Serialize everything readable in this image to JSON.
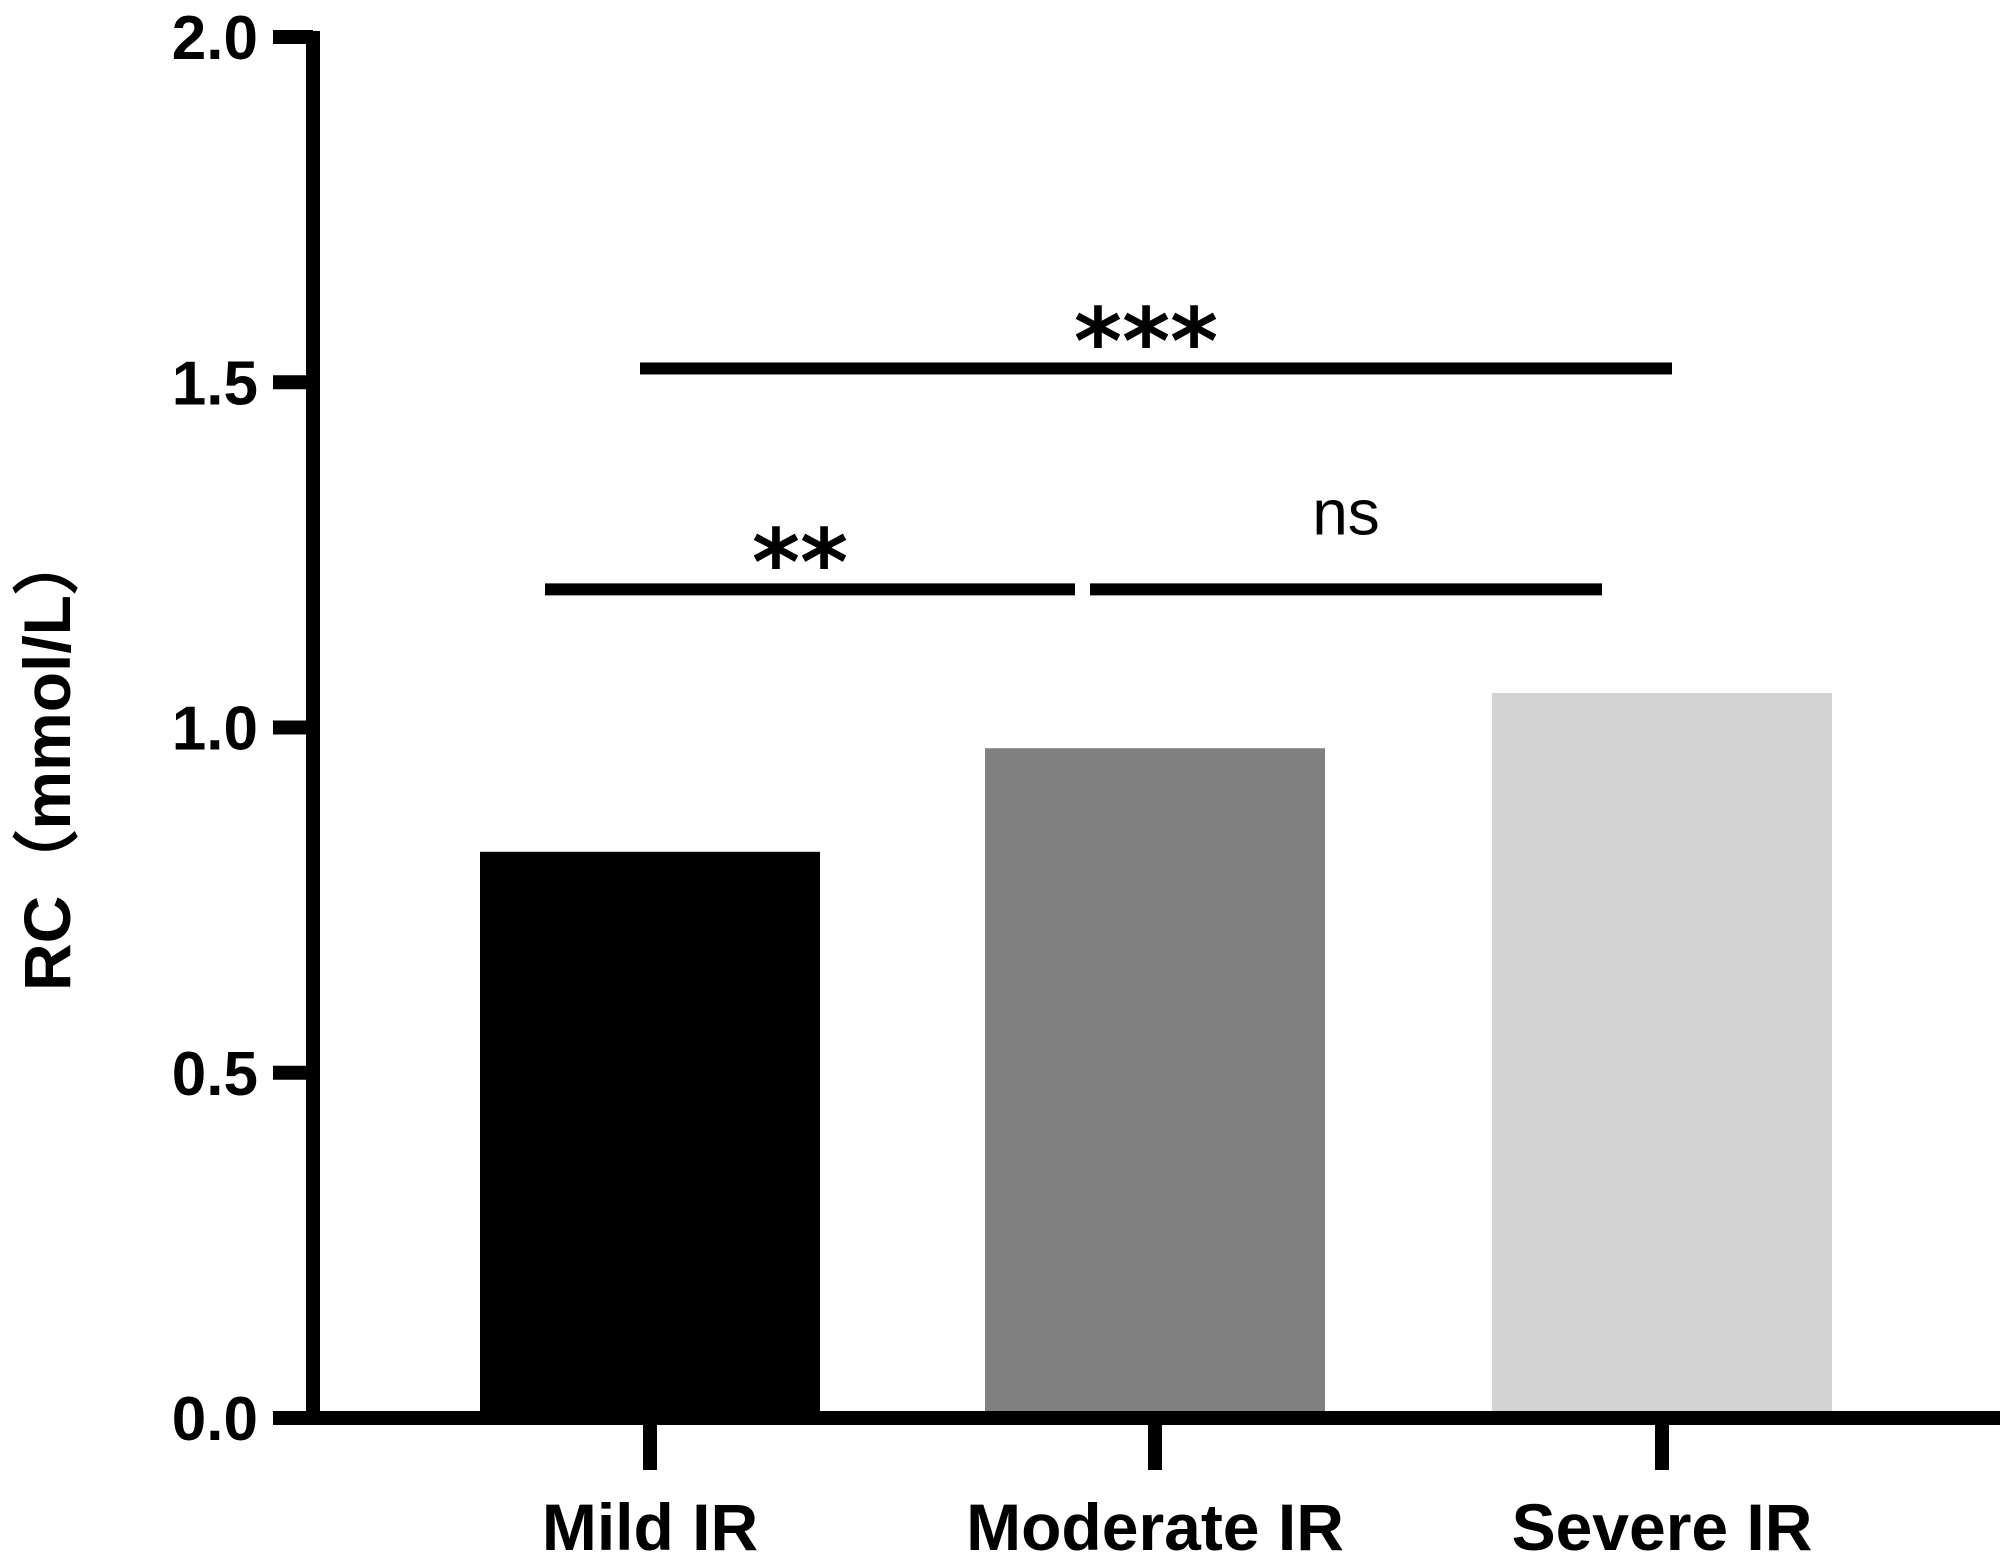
{
  "chart_data": {
    "type": "bar",
    "categories": [
      "Mild IR",
      "Moderate IR",
      "Severe IR"
    ],
    "values": [
      0.82,
      0.97,
      1.05
    ],
    "colors": [
      "#000000",
      "#808080",
      "#d3d3d3"
    ],
    "ylabel": "RC（mmol/L）",
    "xlabel": "",
    "ylim": [
      0,
      2.0
    ],
    "yticks": [
      "0.0",
      "0.5",
      "1.0",
      "1.5",
      "2.0"
    ],
    "grid": false,
    "annotations": [
      {
        "from": "Mild IR",
        "to": "Moderate IR",
        "label": "**",
        "y": 1.2
      },
      {
        "from": "Moderate IR",
        "to": "Severe IR",
        "label": "ns",
        "y": 1.2
      },
      {
        "from": "Mild IR",
        "to": "Severe IR",
        "label": "***",
        "y": 1.52
      }
    ]
  }
}
